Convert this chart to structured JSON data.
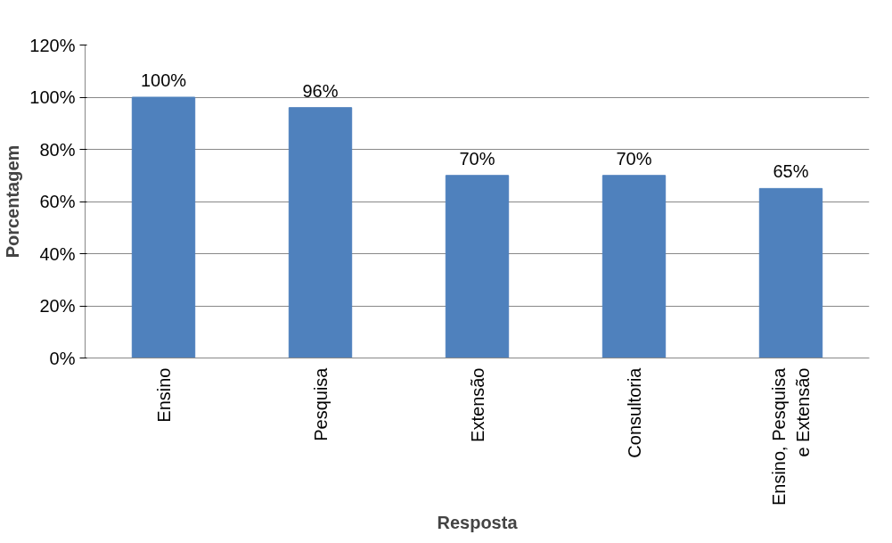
{
  "chart_data": {
    "type": "bar",
    "xlabel": "Resposta",
    "ylabel": "Porcentagem",
    "categories": [
      "Ensino",
      "Pesquisa",
      "Extensão",
      "Consultoria",
      "Ensino, Pesquisa e Extensão"
    ],
    "values": [
      100,
      96,
      70,
      70,
      65
    ],
    "value_labels": [
      "100%",
      "96%",
      "70%",
      "70%",
      "65%"
    ],
    "color": "#4f81bd",
    "ylim": [
      0,
      120
    ],
    "yticks": [
      {
        "value": 0,
        "label": "0%"
      },
      {
        "value": 20,
        "label": "20%"
      },
      {
        "value": 40,
        "label": "40%"
      },
      {
        "value": 60,
        "label": "60%"
      },
      {
        "value": 80,
        "label": "80%"
      },
      {
        "value": 100,
        "label": "100%"
      },
      {
        "value": 120,
        "label": "120%"
      }
    ],
    "grid": "y"
  }
}
